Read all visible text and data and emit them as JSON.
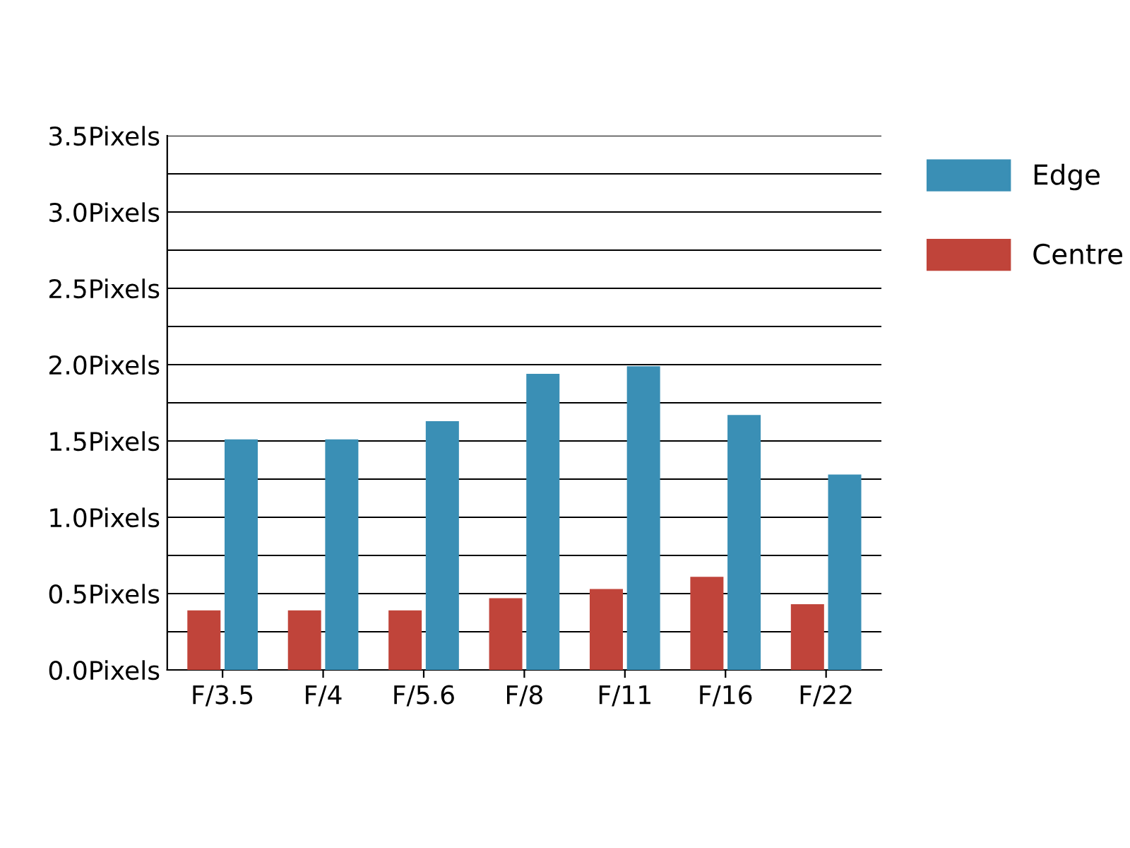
{
  "chart_data": {
    "type": "bar",
    "categories": [
      "F/3.5",
      "F/4",
      "F/5.6",
      "F/8",
      "F/11",
      "F/16",
      "F/22"
    ],
    "series": [
      {
        "name": "Centre",
        "color": "#c0443a",
        "values": [
          0.39,
          0.39,
          0.39,
          0.47,
          0.53,
          0.61,
          0.43
        ]
      },
      {
        "name": "Edge",
        "color": "#3a8fb5",
        "values": [
          1.51,
          1.51,
          1.63,
          1.94,
          1.99,
          1.67,
          1.28
        ]
      }
    ],
    "ylim": [
      0,
      3.5
    ],
    "yticks": [
      {
        "value": 0,
        "label": "0.0Pixels"
      },
      {
        "value": 0.25,
        "label": null
      },
      {
        "value": 0.5,
        "label": "0.5Pixels"
      },
      {
        "value": 0.75,
        "label": null
      },
      {
        "value": 1.0,
        "label": "1.0Pixels"
      },
      {
        "value": 1.25,
        "label": null
      },
      {
        "value": 1.5,
        "label": "1.5Pixels"
      },
      {
        "value": 1.75,
        "label": null
      },
      {
        "value": 2.0,
        "label": "2.0Pixels"
      },
      {
        "value": 2.25,
        "label": null
      },
      {
        "value": 2.5,
        "label": "2.5Pixels"
      },
      {
        "value": 2.75,
        "label": null
      },
      {
        "value": 3.0,
        "label": "3.0Pixels"
      },
      {
        "value": 3.25,
        "label": null
      },
      {
        "value": 3.5,
        "label": "3.5Pixels"
      }
    ],
    "grid": "y",
    "legend": "top right"
  }
}
